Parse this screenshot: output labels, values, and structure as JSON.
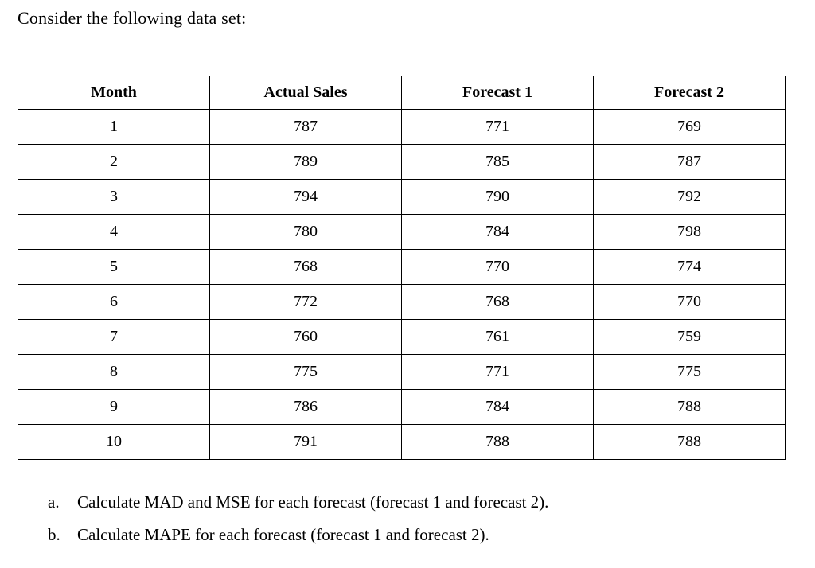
{
  "title": "Consider the following data set:",
  "table": {
    "headers": [
      "Month",
      "Actual Sales",
      "Forecast 1",
      "Forecast 2"
    ],
    "rows": [
      [
        "1",
        "787",
        "771",
        "769"
      ],
      [
        "2",
        "789",
        "785",
        "787"
      ],
      [
        "3",
        "794",
        "790",
        "792"
      ],
      [
        "4",
        "780",
        "784",
        "798"
      ],
      [
        "5",
        "768",
        "770",
        "774"
      ],
      [
        "6",
        "772",
        "768",
        "770"
      ],
      [
        "7",
        "760",
        "761",
        "759"
      ],
      [
        "8",
        "775",
        "771",
        "775"
      ],
      [
        "9",
        "786",
        "784",
        "788"
      ],
      [
        "10",
        "791",
        "788",
        "788"
      ]
    ]
  },
  "questions": [
    {
      "marker": "a.",
      "text": "Calculate MAD and MSE for each forecast (forecast 1 and forecast 2)."
    },
    {
      "marker": "b.",
      "text": "Calculate MAPE for each forecast (forecast 1 and forecast 2)."
    }
  ],
  "colors": {
    "text": "#000000",
    "background": "#ffffff",
    "table_border": "#000000"
  }
}
